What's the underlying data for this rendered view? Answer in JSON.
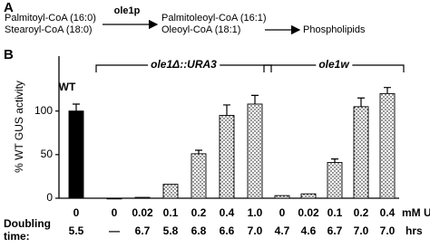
{
  "panel_a": {
    "label": "A",
    "substrates": [
      "Palmitoyl-CoA (16:0)",
      "Stearoyl-CoA (18:0)"
    ],
    "enzyme": "ole1p",
    "products": [
      "Palmitoleoyl-CoA (16:1)",
      "Oleoyl-CoA  (18:1)"
    ],
    "final": "Phospholipids"
  },
  "panel_b": {
    "label": "B"
  },
  "chart_data": {
    "type": "bar",
    "y_label": "% WT GUS activity",
    "ylim": [
      0,
      163
    ],
    "yticks": [
      0,
      50,
      100
    ],
    "x_unit": "mM UFA",
    "doubling_label": "Doubling time:",
    "doubling_unit": "hrs",
    "groups": [
      {
        "name": "WT",
        "color": "#000000",
        "style": "solid",
        "categories": [
          "0"
        ],
        "values": [
          100
        ],
        "errors": [
          8
        ],
        "doubling_times": [
          "5.5"
        ]
      },
      {
        "name": "ole1Δ::URA3",
        "color": "#000000",
        "style": "dotted",
        "categories": [
          "0",
          "0.02",
          "0.1",
          "0.2",
          "0.4",
          "1.0"
        ],
        "values": [
          0,
          1,
          16,
          51,
          95,
          108
        ],
        "errors": [
          null,
          null,
          null,
          4,
          12,
          10
        ],
        "doubling_times": [
          "—",
          "6.7",
          "5.8",
          "6.8",
          "6.6",
          "7.0"
        ]
      },
      {
        "name": "ole1w",
        "color": "#000000",
        "style": "dotted",
        "categories": [
          "0",
          "0.02",
          "0.1",
          "0.2",
          "0.4"
        ],
        "values": [
          3,
          5,
          41,
          105,
          120
        ],
        "errors": [
          null,
          null,
          4,
          10,
          7
        ],
        "doubling_times": [
          "4.7",
          "4.6",
          "6.7",
          "7.0",
          "7.0"
        ]
      }
    ]
  }
}
